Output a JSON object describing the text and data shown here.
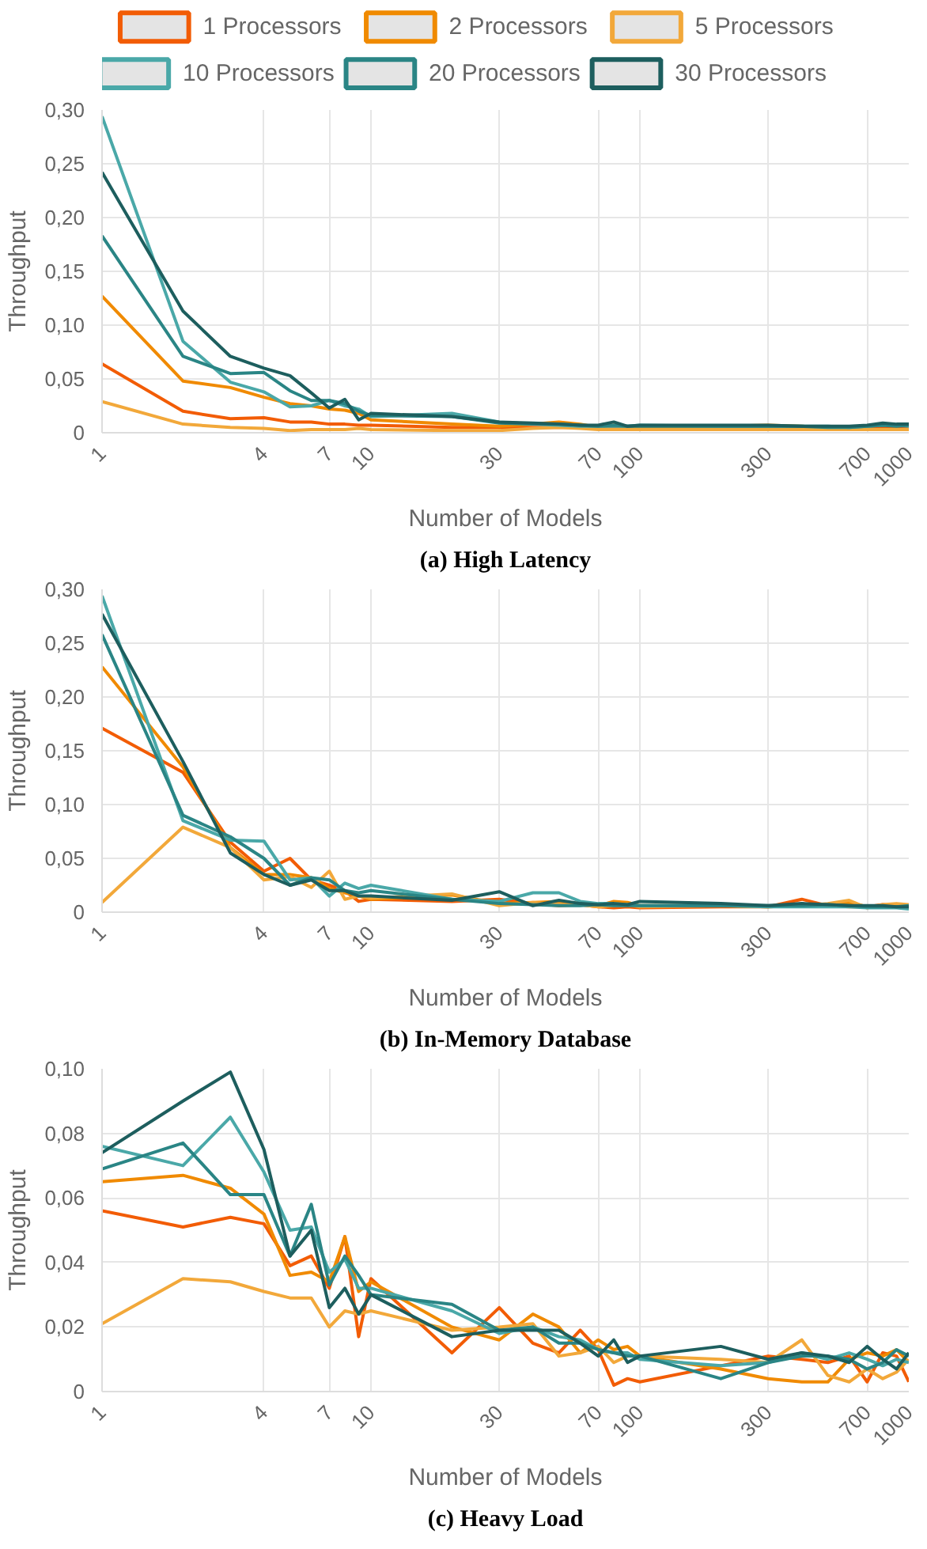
{
  "chart_data": [
    {
      "type": "line",
      "title": "(a) High Latency",
      "xlabel": "Number of Models",
      "ylabel": "Throughput",
      "log": "x",
      "grid": true,
      "legend": "top",
      "xlim": [
        1,
        1000
      ],
      "xticks": [
        1,
        4,
        7,
        10,
        30,
        70,
        100,
        300,
        700,
        1000
      ],
      "ylim": [
        0,
        0.3
      ],
      "yticks": [
        0,
        {
          "value": 0.05,
          "label": "0,05"
        },
        {
          "value": 0.1,
          "label": "0,10"
        },
        {
          "value": 0.15,
          "label": "0,15"
        },
        {
          "value": 0.2,
          "label": "0,20"
        },
        {
          "value": 0.25,
          "label": "0,25"
        },
        {
          "value": 0.3,
          "label": "0,30"
        }
      ],
      "x": [
        1,
        2,
        3,
        4,
        5,
        6,
        7,
        8,
        9,
        10,
        20,
        30,
        40,
        50,
        60,
        70,
        80,
        90,
        100,
        200,
        300,
        400,
        500,
        600,
        700,
        800,
        900,
        1000
      ],
      "series": [
        {
          "name": "1 Processors",
          "color": "#f25c05",
          "values": [
            0.064,
            0.02,
            0.013,
            0.014,
            0.01,
            0.01,
            0.008,
            0.008,
            0.007,
            0.007,
            0.005,
            0.005,
            0.005,
            0.005,
            0.005,
            0.004,
            0.004,
            0.004,
            0.004,
            0.004,
            0.004,
            0.004,
            0.004,
            0.004,
            0.005,
            0.005,
            0.005,
            0.006
          ]
        },
        {
          "name": "2 Processors",
          "color": "#f08a00",
          "values": [
            0.127,
            0.048,
            0.042,
            0.033,
            0.027,
            0.025,
            0.022,
            0.021,
            0.018,
            0.012,
            0.008,
            0.006,
            0.008,
            0.01,
            0.008,
            0.005,
            0.007,
            0.005,
            0.005,
            0.006,
            0.007,
            0.006,
            0.005,
            0.005,
            0.006,
            0.007,
            0.006,
            0.008
          ]
        },
        {
          "name": "5 Processors",
          "color": "#f2a83a",
          "values": [
            0.029,
            0.008,
            0.005,
            0.004,
            0.002,
            0.003,
            0.003,
            0.003,
            0.004,
            0.003,
            0.002,
            0.002,
            0.004,
            0.005,
            0.004,
            0.003,
            0.003,
            0.003,
            0.003,
            0.003,
            0.003,
            0.003,
            0.003,
            0.003,
            0.003,
            0.003,
            0.003,
            0.003
          ]
        },
        {
          "name": "10 Processors",
          "color": "#4aa8a8",
          "values": [
            0.294,
            0.085,
            0.047,
            0.038,
            0.024,
            0.025,
            0.03,
            0.025,
            0.022,
            0.015,
            0.018,
            0.01,
            0.008,
            0.007,
            0.006,
            0.006,
            0.006,
            0.006,
            0.007,
            0.006,
            0.006,
            0.006,
            0.006,
            0.005,
            0.006,
            0.007,
            0.007,
            0.006
          ]
        },
        {
          "name": "20 Processors",
          "color": "#2a8585",
          "values": [
            0.183,
            0.071,
            0.055,
            0.056,
            0.039,
            0.03,
            0.03,
            0.027,
            0.02,
            0.016,
            0.015,
            0.009,
            0.008,
            0.008,
            0.007,
            0.006,
            0.007,
            0.006,
            0.006,
            0.006,
            0.006,
            0.006,
            0.005,
            0.005,
            0.006,
            0.007,
            0.006,
            0.007
          ]
        },
        {
          "name": "30 Processors",
          "color": "#1d5e5e",
          "values": [
            0.242,
            0.113,
            0.071,
            0.06,
            0.053,
            0.037,
            0.023,
            0.031,
            0.012,
            0.018,
            0.015,
            0.01,
            0.009,
            0.008,
            0.007,
            0.007,
            0.01,
            0.006,
            0.007,
            0.007,
            0.007,
            0.006,
            0.006,
            0.006,
            0.007,
            0.009,
            0.008,
            0.008
          ]
        }
      ]
    },
    {
      "type": "line",
      "title": "(b) In-Memory Database",
      "xlabel": "Number of Models",
      "ylabel": "Throughput",
      "log": "x",
      "grid": true,
      "xlim": [
        1,
        1000
      ],
      "xticks": [
        1,
        4,
        7,
        10,
        30,
        70,
        100,
        300,
        700,
        1000
      ],
      "ylim": [
        0,
        0.3
      ],
      "yticks": [
        0,
        {
          "value": 0.05,
          "label": "0,05"
        },
        {
          "value": 0.1,
          "label": "0,10"
        },
        {
          "value": 0.15,
          "label": "0,15"
        },
        {
          "value": 0.2,
          "label": "0,20"
        },
        {
          "value": 0.25,
          "label": "0,25"
        },
        {
          "value": 0.3,
          "label": "0,30"
        }
      ],
      "x": [
        1,
        2,
        3,
        4,
        5,
        6,
        7,
        8,
        9,
        10,
        20,
        30,
        40,
        50,
        60,
        70,
        80,
        90,
        100,
        200,
        300,
        400,
        500,
        600,
        700,
        800,
        900,
        1000
      ],
      "series": [
        {
          "color": "#f25c05",
          "values": [
            0.171,
            0.13,
            0.065,
            0.038,
            0.05,
            0.03,
            0.025,
            0.02,
            0.01,
            0.012,
            0.01,
            0.012,
            0.008,
            0.006,
            0.007,
            0.005,
            0.004,
            0.005,
            0.004,
            0.005,
            0.005,
            0.012,
            0.006,
            0.005,
            0.005,
            0.007,
            0.006,
            0.004
          ]
        },
        {
          "color": "#f08a00",
          "values": [
            0.228,
            0.135,
            0.06,
            0.035,
            0.035,
            0.032,
            0.022,
            0.018,
            0.015,
            0.012,
            0.016,
            0.008,
            0.009,
            0.01,
            0.008,
            0.006,
            0.01,
            0.009,
            0.006,
            0.006,
            0.005,
            0.006,
            0.007,
            0.009,
            0.005,
            0.005,
            0.007,
            0.006
          ]
        },
        {
          "color": "#f2a83a",
          "values": [
            0.009,
            0.079,
            0.06,
            0.03,
            0.033,
            0.023,
            0.038,
            0.012,
            0.015,
            0.013,
            0.017,
            0.006,
            0.009,
            0.007,
            0.007,
            0.005,
            0.006,
            0.007,
            0.005,
            0.006,
            0.005,
            0.006,
            0.008,
            0.011,
            0.004,
            0.007,
            0.008,
            0.007
          ]
        },
        {
          "color": "#4aa8a8",
          "values": [
            0.294,
            0.085,
            0.067,
            0.066,
            0.03,
            0.032,
            0.015,
            0.027,
            0.022,
            0.025,
            0.012,
            0.01,
            0.018,
            0.018,
            0.01,
            0.008,
            0.008,
            0.007,
            0.006,
            0.006,
            0.005,
            0.005,
            0.005,
            0.005,
            0.004,
            0.004,
            0.004,
            0.003
          ]
        },
        {
          "color": "#2a8585",
          "values": [
            0.258,
            0.09,
            0.07,
            0.05,
            0.025,
            0.032,
            0.03,
            0.02,
            0.018,
            0.02,
            0.012,
            0.008,
            0.007,
            0.006,
            0.006,
            0.007,
            0.006,
            0.006,
            0.006,
            0.006,
            0.006,
            0.006,
            0.007,
            0.006,
            0.005,
            0.005,
            0.005,
            0.006
          ]
        },
        {
          "color": "#1d5e5e",
          "values": [
            0.277,
            0.14,
            0.055,
            0.035,
            0.025,
            0.03,
            0.02,
            0.02,
            0.015,
            0.015,
            0.011,
            0.019,
            0.006,
            0.011,
            0.008,
            0.007,
            0.008,
            0.007,
            0.01,
            0.008,
            0.006,
            0.008,
            0.007,
            0.006,
            0.006,
            0.006,
            0.005,
            0.005
          ]
        }
      ]
    },
    {
      "type": "line",
      "title": "(c) Heavy Load",
      "xlabel": "Number of Models",
      "ylabel": "Throughput",
      "log": "x",
      "grid": true,
      "xlim": [
        1,
        1000
      ],
      "xticks": [
        1,
        4,
        7,
        10,
        30,
        70,
        100,
        300,
        700,
        1000
      ],
      "ylim": [
        0,
        0.1
      ],
      "yticks": [
        0,
        {
          "value": 0.02,
          "label": "0,02"
        },
        {
          "value": 0.04,
          "label": "0,04"
        },
        {
          "value": 0.06,
          "label": "0,06"
        },
        {
          "value": 0.08,
          "label": "0,08"
        },
        {
          "value": 0.1,
          "label": "0,10"
        }
      ],
      "x": [
        1,
        2,
        3,
        4,
        5,
        6,
        7,
        8,
        9,
        10,
        20,
        30,
        40,
        50,
        60,
        70,
        80,
        90,
        100,
        200,
        300,
        400,
        500,
        600,
        700,
        800,
        900,
        1000
      ],
      "series": [
        {
          "color": "#f25c05",
          "values": [
            0.056,
            0.051,
            0.054,
            0.052,
            0.039,
            0.042,
            0.032,
            0.048,
            0.017,
            0.035,
            0.012,
            0.026,
            0.015,
            0.012,
            0.019,
            0.013,
            0.002,
            0.004,
            0.003,
            0.008,
            0.011,
            0.01,
            0.009,
            0.011,
            0.003,
            0.012,
            0.011,
            0.003
          ]
        },
        {
          "color": "#f08a00",
          "values": [
            0.065,
            0.067,
            0.063,
            0.055,
            0.036,
            0.037,
            0.034,
            0.048,
            0.031,
            0.034,
            0.02,
            0.016,
            0.024,
            0.02,
            0.012,
            0.016,
            0.013,
            0.014,
            0.011,
            0.007,
            0.004,
            0.003,
            0.003,
            0.01,
            0.012,
            0.011,
            0.013,
            0.009
          ]
        },
        {
          "color": "#f2a83a",
          "values": [
            0.021,
            0.035,
            0.034,
            0.031,
            0.029,
            0.029,
            0.02,
            0.025,
            0.024,
            0.025,
            0.019,
            0.02,
            0.021,
            0.011,
            0.012,
            0.014,
            0.009,
            0.011,
            0.011,
            0.01,
            0.009,
            0.016,
            0.005,
            0.003,
            0.007,
            0.004,
            0.006,
            0.01
          ]
        },
        {
          "color": "#4aa8a8",
          "values": [
            0.076,
            0.07,
            0.085,
            0.068,
            0.05,
            0.051,
            0.037,
            0.041,
            0.032,
            0.032,
            0.025,
            0.018,
            0.02,
            0.017,
            0.016,
            0.013,
            0.012,
            0.012,
            0.01,
            0.008,
            0.009,
            0.012,
            0.01,
            0.012,
            0.01,
            0.008,
            0.01,
            0.009
          ]
        },
        {
          "color": "#2a8585",
          "values": [
            0.069,
            0.077,
            0.061,
            0.061,
            0.042,
            0.058,
            0.033,
            0.042,
            0.036,
            0.03,
            0.027,
            0.019,
            0.02,
            0.015,
            0.015,
            0.013,
            0.012,
            0.011,
            0.011,
            0.004,
            0.009,
            0.011,
            0.011,
            0.01,
            0.007,
            0.009,
            0.013,
            0.011
          ]
        },
        {
          "color": "#1d5e5e",
          "values": [
            0.074,
            0.09,
            0.099,
            0.075,
            0.042,
            0.05,
            0.026,
            0.032,
            0.024,
            0.03,
            0.017,
            0.019,
            0.019,
            0.019,
            0.015,
            0.011,
            0.016,
            0.009,
            0.011,
            0.014,
            0.01,
            0.012,
            0.011,
            0.009,
            0.014,
            0.01,
            0.007,
            0.012
          ]
        }
      ]
    }
  ]
}
